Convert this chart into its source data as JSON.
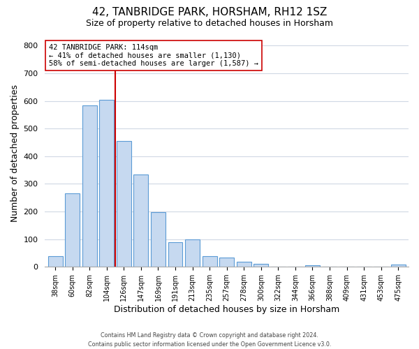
{
  "title": "42, TANBRIDGE PARK, HORSHAM, RH12 1SZ",
  "subtitle": "Size of property relative to detached houses in Horsham",
  "xlabel": "Distribution of detached houses by size in Horsham",
  "ylabel": "Number of detached properties",
  "bar_labels": [
    "38sqm",
    "60sqm",
    "82sqm",
    "104sqm",
    "126sqm",
    "147sqm",
    "169sqm",
    "191sqm",
    "213sqm",
    "235sqm",
    "257sqm",
    "278sqm",
    "300sqm",
    "322sqm",
    "344sqm",
    "366sqm",
    "388sqm",
    "409sqm",
    "431sqm",
    "453sqm",
    "475sqm"
  ],
  "bar_values": [
    38,
    265,
    585,
    605,
    455,
    335,
    197,
    90,
    100,
    38,
    33,
    18,
    10,
    0,
    0,
    5,
    0,
    0,
    0,
    0,
    8
  ],
  "bar_color": "#c6d9f0",
  "bar_edge_color": "#5b9bd5",
  "marker_line_color": "#cc0000",
  "annotation_text": "42 TANBRIDGE PARK: 114sqm\n← 41% of detached houses are smaller (1,130)\n58% of semi-detached houses are larger (1,587) →",
  "annotation_box_edge_color": "#cc0000",
  "ylim": [
    0,
    820
  ],
  "yticks": [
    0,
    100,
    200,
    300,
    400,
    500,
    600,
    700,
    800
  ],
  "footer_text": "Contains HM Land Registry data © Crown copyright and database right 2024.\nContains public sector information licensed under the Open Government Licence v3.0.",
  "background_color": "#ffffff",
  "grid_color": "#d0d8e4"
}
